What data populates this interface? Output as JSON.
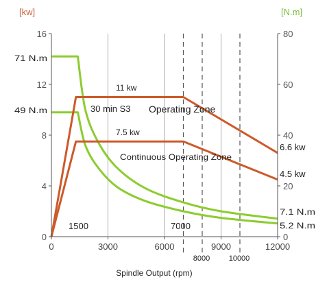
{
  "chart_data": {
    "type": "line",
    "title": "",
    "xlabel": "Spindle Output (rpm)",
    "x_ticks": [
      "0",
      "3000",
      "6000",
      "9000",
      "12000"
    ],
    "xlim": [
      0,
      12000
    ],
    "y_left": {
      "unit": "[kw]",
      "ticks": [
        "0",
        "4",
        "8",
        "12",
        "16"
      ],
      "range": [
        0,
        16
      ]
    },
    "y_right": {
      "unit": "[N.m]",
      "ticks": [
        "0",
        "20",
        "40",
        "60",
        "80"
      ],
      "range": [
        0,
        80
      ]
    },
    "grid": "vertical",
    "colors": {
      "power": "#cc5a2a",
      "torque": "#8ccc30",
      "left_axis": "#c8643c",
      "right_axis": "#7cbc3c"
    },
    "power_series": [
      {
        "name": "11 kw",
        "end_label": "6.6 kw",
        "points": [
          [
            0,
            0
          ],
          [
            1300,
            11
          ],
          [
            7000,
            11
          ],
          [
            12000,
            6.6
          ]
        ]
      },
      {
        "name": "7.5 kw",
        "end_label": "4.5 kw",
        "points": [
          [
            0,
            0
          ],
          [
            1300,
            7.5
          ],
          [
            7000,
            7.5
          ],
          [
            12000,
            4.5
          ]
        ]
      }
    ],
    "torque_series": [
      {
        "name": "71 N.m",
        "end_label": "7.1 N.m",
        "points": [
          [
            0,
            71
          ],
          [
            1400,
            71
          ],
          [
            1800,
            50
          ],
          [
            2500,
            37
          ],
          [
            3500,
            27
          ],
          [
            5000,
            19
          ],
          [
            7000,
            13.5
          ],
          [
            9000,
            10
          ],
          [
            12000,
            7.1
          ]
        ]
      },
      {
        "name": "49 N.m",
        "end_label": "5.2 N.m",
        "points": [
          [
            0,
            49
          ],
          [
            1400,
            49
          ],
          [
            1800,
            36
          ],
          [
            2500,
            27
          ],
          [
            3500,
            19.5
          ],
          [
            5000,
            14
          ],
          [
            7000,
            10
          ],
          [
            9000,
            7.4
          ],
          [
            12000,
            5.2
          ]
        ]
      }
    ],
    "dashed_x": [
      7000,
      8000,
      10000
    ],
    "annotations": {
      "zone_s3": "30 min S3",
      "zone_operating": "Operating Zone",
      "zone_continuous": "Continuous Operating Zone",
      "rpm_1500": "1500",
      "rpm_7000": "7000",
      "rpm_8000": "8000",
      "rpm_10000": "10000"
    }
  }
}
